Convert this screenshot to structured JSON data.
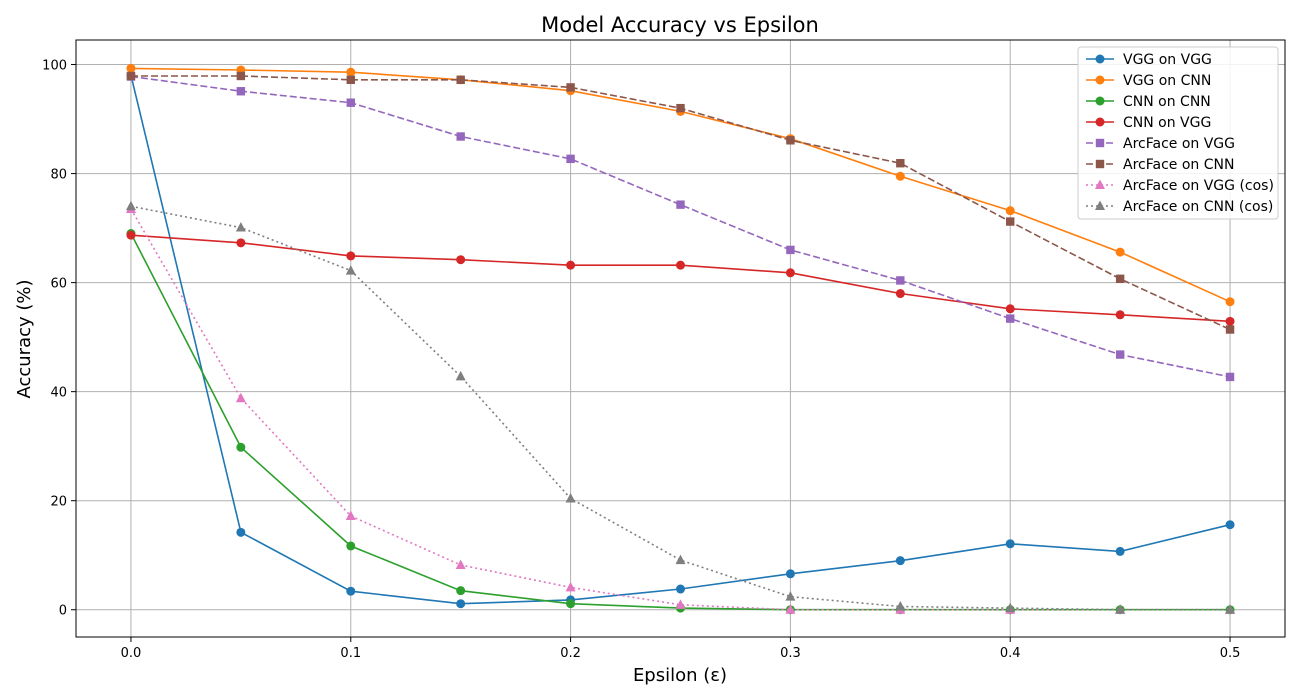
{
  "chart_data": {
    "type": "line",
    "title": "Model Accuracy vs Epsilon",
    "xlabel": "Epsilon (ε)",
    "ylabel": "Accuracy (%)",
    "xlim": [
      -0.025,
      0.525
    ],
    "ylim": [
      -5,
      104.5
    ],
    "xticks": [
      0.0,
      0.1,
      0.2,
      0.3,
      0.4,
      0.5
    ],
    "xtick_labels": [
      "0.0",
      "0.1",
      "0.2",
      "0.3",
      "0.4",
      "0.5"
    ],
    "yticks": [
      0,
      20,
      40,
      60,
      80,
      100
    ],
    "ytick_labels": [
      "0",
      "20",
      "40",
      "60",
      "80",
      "100"
    ],
    "grid": true,
    "legend_position": "top-right",
    "x": [
      0.0,
      0.05,
      0.1,
      0.15,
      0.2,
      0.25,
      0.3,
      0.35,
      0.4,
      0.45,
      0.5
    ],
    "series": [
      {
        "name": "VGG on VGG",
        "color": "#1f77b4",
        "marker": "circle",
        "dash": "solid",
        "values": [
          98.0,
          14.2,
          3.4,
          1.1,
          1.8,
          3.8,
          6.6,
          9.0,
          12.1,
          10.7,
          15.6
        ]
      },
      {
        "name": "VGG on CNN",
        "color": "#ff7f0e",
        "marker": "circle",
        "dash": "solid",
        "values": [
          99.3,
          99.0,
          98.6,
          97.2,
          95.2,
          91.4,
          86.4,
          79.5,
          73.2,
          65.6,
          56.5
        ]
      },
      {
        "name": "CNN on CNN",
        "color": "#2ca02c",
        "marker": "circle",
        "dash": "solid",
        "values": [
          69.0,
          29.8,
          11.7,
          3.5,
          1.1,
          0.3,
          0.0,
          0.0,
          0.0,
          0.0,
          0.0
        ]
      },
      {
        "name": "CNN on VGG",
        "color": "#d62728",
        "marker": "circle",
        "dash": "solid",
        "values": [
          68.7,
          67.3,
          64.9,
          64.2,
          63.2,
          63.2,
          61.8,
          58.0,
          55.2,
          54.1,
          52.9
        ]
      },
      {
        "name": "ArcFace on VGG",
        "color": "#9467bd",
        "marker": "square",
        "dash": "dashed",
        "values": [
          97.8,
          95.1,
          93.0,
          86.8,
          82.7,
          74.3,
          66.0,
          60.4,
          53.4,
          46.8,
          42.7
        ]
      },
      {
        "name": "ArcFace on CNN",
        "color": "#8c564b",
        "marker": "square",
        "dash": "dashed",
        "values": [
          97.9,
          97.9,
          97.2,
          97.2,
          95.8,
          92.0,
          86.1,
          81.9,
          71.2,
          60.7,
          51.4
        ]
      },
      {
        "name": "ArcFace on VGG (cos)",
        "color": "#e377c2",
        "marker": "triangle",
        "dash": "dotted",
        "values": [
          73.5,
          38.8,
          17.2,
          8.2,
          4.1,
          0.9,
          0.0,
          0.0,
          0.0,
          0.0,
          0.0
        ]
      },
      {
        "name": "ArcFace on CNN (cos)",
        "color": "#7f7f7f",
        "marker": "triangle",
        "dash": "dotted",
        "values": [
          74.0,
          70.1,
          62.2,
          42.8,
          20.4,
          9.1,
          2.4,
          0.6,
          0.3,
          0.0,
          0.0
        ]
      }
    ]
  }
}
